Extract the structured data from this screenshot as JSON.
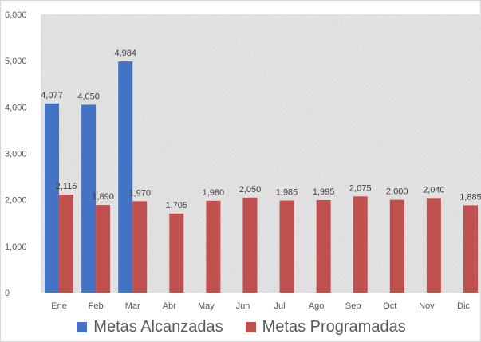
{
  "chart_data": {
    "type": "bar",
    "categories": [
      "Ene",
      "Feb",
      "Mar",
      "Abr",
      "May",
      "Jun",
      "Jul",
      "Ago",
      "Sep",
      "Oct",
      "Nov",
      "Dic"
    ],
    "series": [
      {
        "name": "Metas Alcanzadas",
        "color": "#4472c4",
        "values": [
          4077,
          4050,
          4984,
          null,
          null,
          null,
          null,
          null,
          null,
          null,
          null,
          null
        ],
        "labels": [
          "4,077",
          "4,050",
          "4,984",
          "",
          "",
          "",
          "",
          "",
          "",
          "",
          "",
          ""
        ]
      },
      {
        "name": "Metas Programadas",
        "color": "#c0504d",
        "values": [
          2115,
          1890,
          1970,
          1705,
          1980,
          2050,
          1985,
          1995,
          2075,
          2000,
          2040,
          1885
        ],
        "labels": [
          "2,115",
          "1,890",
          "1,970",
          "1,705",
          "1,980",
          "2,050",
          "1,985",
          "1,995",
          "2,075",
          "2,000",
          "2,040",
          "1,885"
        ]
      }
    ],
    "ylim": [
      0,
      6000
    ],
    "yticks": [
      "0",
      "1,000",
      "2,000",
      "3,000",
      "4,000",
      "5,000",
      "6,000"
    ],
    "title": "",
    "xlabel": "",
    "ylabel": "",
    "grid": false,
    "legend_position": "bottom"
  },
  "plot_background": "#ebebeb"
}
